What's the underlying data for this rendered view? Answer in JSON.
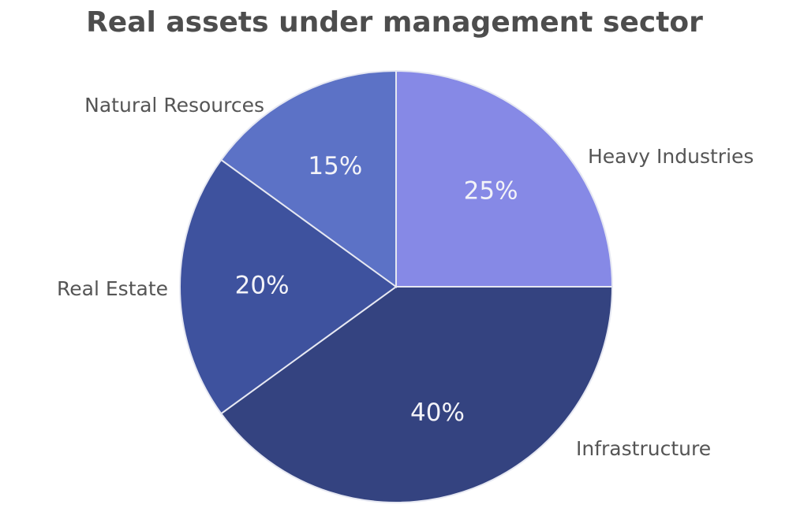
{
  "chart_data": {
    "type": "pie",
    "title": "Real assets under management sector",
    "slices": [
      {
        "label": "Heavy Industries",
        "value": 25,
        "display": "25%",
        "color": "#8689e6"
      },
      {
        "label": "Infrastructure",
        "value": 40,
        "display": "40%",
        "color": "#344380"
      },
      {
        "label": "Real Estate",
        "value": 20,
        "display": "20%",
        "color": "#3e529e"
      },
      {
        "label": "Natural Resources",
        "value": 15,
        "display": "15%",
        "color": "#5c72c6"
      }
    ],
    "start_angle": "12 o'clock",
    "direction": "clockwise",
    "slice_border_color": "#e6e8f2"
  }
}
